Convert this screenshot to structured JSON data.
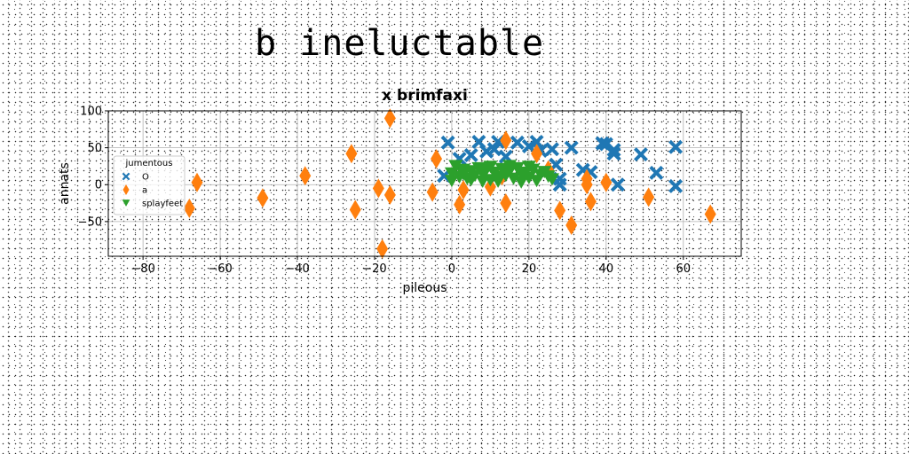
{
  "figure_title": "b ineluctable",
  "chart_data": {
    "type": "scatter",
    "title": "x brimfaxi",
    "xlabel": "pileous",
    "ylabel": "annats",
    "xlim": [
      -89,
      75
    ],
    "ylim": [
      -97,
      100
    ],
    "xticks": [
      -80,
      -60,
      -40,
      -20,
      0,
      20,
      40,
      60
    ],
    "yticks": [
      -50,
      0,
      50,
      100
    ],
    "grid": true,
    "legend": {
      "title": "jumentous",
      "placement": "center-left"
    },
    "series": [
      {
        "name": "O",
        "marker": "x-filled",
        "color": "#1f77b4",
        "points": [
          [
            -1,
            57
          ],
          [
            2,
            35
          ],
          [
            -2,
            12
          ],
          [
            5,
            40
          ],
          [
            7,
            58
          ],
          [
            9,
            45
          ],
          [
            12,
            58
          ],
          [
            11,
            48
          ],
          [
            14,
            38
          ],
          [
            17,
            57
          ],
          [
            20,
            52
          ],
          [
            22,
            58
          ],
          [
            23,
            46
          ],
          [
            26,
            48
          ],
          [
            27,
            27
          ],
          [
            28,
            0
          ],
          [
            28,
            8
          ],
          [
            31,
            50
          ],
          [
            34,
            20
          ],
          [
            36,
            17
          ],
          [
            39,
            56
          ],
          [
            40,
            55
          ],
          [
            42,
            42
          ],
          [
            42,
            47
          ],
          [
            43,
            0
          ],
          [
            49,
            41
          ],
          [
            53,
            16
          ],
          [
            58,
            51
          ],
          [
            58,
            -2
          ]
        ]
      },
      {
        "name": "a",
        "marker": "thin-diamond",
        "color": "#ff7f0e",
        "points": [
          [
            -16,
            90
          ],
          [
            -26,
            42
          ],
          [
            -38,
            12
          ],
          [
            -66,
            3
          ],
          [
            -68,
            -32
          ],
          [
            -49,
            -18
          ],
          [
            -25,
            -34
          ],
          [
            -19,
            -5
          ],
          [
            -16,
            -14
          ],
          [
            -18,
            -87
          ],
          [
            -5,
            -10
          ],
          [
            -4,
            35
          ],
          [
            2,
            -27
          ],
          [
            3,
            -7
          ],
          [
            10,
            -3
          ],
          [
            13,
            12
          ],
          [
            14,
            60
          ],
          [
            14,
            -25
          ],
          [
            22,
            42
          ],
          [
            25,
            20
          ],
          [
            28,
            -35
          ],
          [
            31,
            -55
          ],
          [
            35,
            8
          ],
          [
            35,
            0
          ],
          [
            36,
            -23
          ],
          [
            40,
            3
          ],
          [
            51,
            -17
          ],
          [
            67,
            -40
          ]
        ]
      },
      {
        "name": "splayfeet",
        "marker": "triangle-down",
        "color": "#2ca02c",
        "points": [
          [
            0,
            15
          ],
          [
            1,
            25
          ],
          [
            2,
            10
          ],
          [
            3,
            20
          ],
          [
            4,
            8
          ],
          [
            5,
            18
          ],
          [
            6,
            12
          ],
          [
            7,
            22
          ],
          [
            8,
            14
          ],
          [
            9,
            20
          ],
          [
            10,
            6
          ],
          [
            11,
            16
          ],
          [
            12,
            10
          ],
          [
            13,
            21
          ],
          [
            14,
            12
          ],
          [
            15,
            18
          ],
          [
            16,
            8
          ],
          [
            17,
            22
          ],
          [
            18,
            14
          ],
          [
            19,
            16
          ],
          [
            20,
            9
          ],
          [
            21,
            20
          ],
          [
            22,
            5
          ],
          [
            23,
            13
          ],
          [
            24,
            17
          ],
          [
            25,
            11
          ],
          [
            5,
            6
          ],
          [
            12,
            4
          ],
          [
            18,
            3
          ],
          [
            3,
            14
          ],
          [
            8,
            4
          ],
          [
            20,
            24
          ],
          [
            15,
            25
          ],
          [
            10,
            24
          ],
          [
            0,
            5
          ],
          [
            26,
            7
          ]
        ]
      }
    ]
  }
}
